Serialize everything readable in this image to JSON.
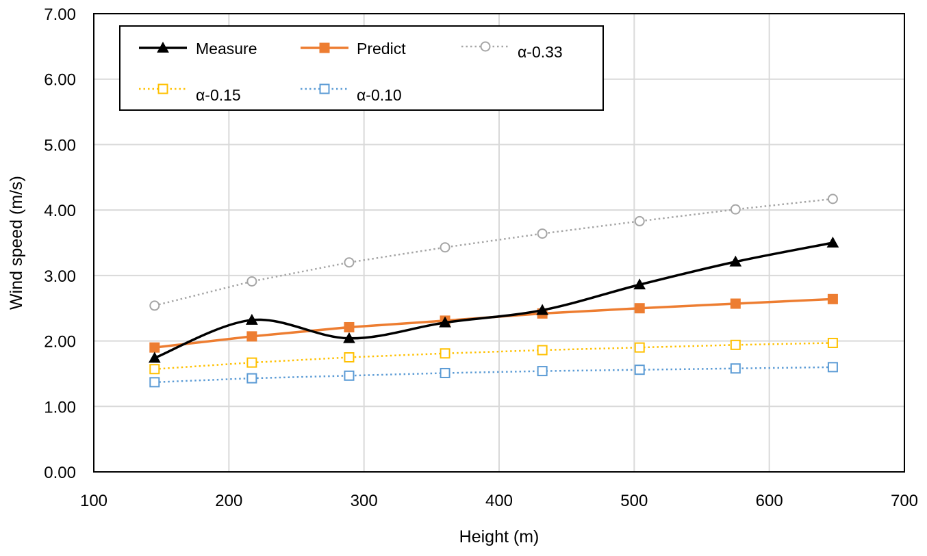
{
  "chart_data": {
    "type": "line",
    "title": "",
    "xlabel": "Height (m)",
    "ylabel": "Wind speed (m/s)",
    "xlim": [
      100,
      700
    ],
    "ylim": [
      0,
      7
    ],
    "x_ticks": [
      "100",
      "200",
      "300",
      "400",
      "500",
      "600",
      "700"
    ],
    "y_ticks": [
      "0.00",
      "1.00",
      "2.00",
      "3.00",
      "4.00",
      "5.00",
      "6.00",
      "7.00"
    ],
    "grid": true,
    "legend_position": "top-left",
    "x": [
      145,
      217,
      289,
      360,
      432,
      504,
      575,
      647
    ],
    "series": [
      {
        "name": "Measure",
        "values": [
          1.74,
          2.32,
          2.04,
          2.28,
          2.47,
          2.86,
          3.21,
          3.5
        ],
        "color": "#000000",
        "marker": "triangle",
        "line": "solid",
        "smooth": true
      },
      {
        "name": "Predict",
        "values": [
          1.9,
          2.07,
          2.21,
          2.31,
          2.42,
          2.5,
          2.57,
          2.64
        ],
        "color": "#ed7d31",
        "marker": "square",
        "line": "solid"
      },
      {
        "name": "α-0.33",
        "values": [
          2.54,
          2.91,
          3.2,
          3.43,
          3.64,
          3.83,
          4.01,
          4.17
        ],
        "color": "#a5a5a5",
        "marker": "circle-open",
        "line": "dotted"
      },
      {
        "name": "α-0.15",
        "values": [
          1.57,
          1.67,
          1.75,
          1.81,
          1.86,
          1.9,
          1.94,
          1.97
        ],
        "color": "#ffc000",
        "marker": "square-open",
        "line": "dotted"
      },
      {
        "name": "α-0.10",
        "values": [
          1.37,
          1.43,
          1.47,
          1.51,
          1.54,
          1.56,
          1.58,
          1.6
        ],
        "color": "#5b9bd5",
        "marker": "square-open",
        "line": "dotted"
      }
    ]
  }
}
